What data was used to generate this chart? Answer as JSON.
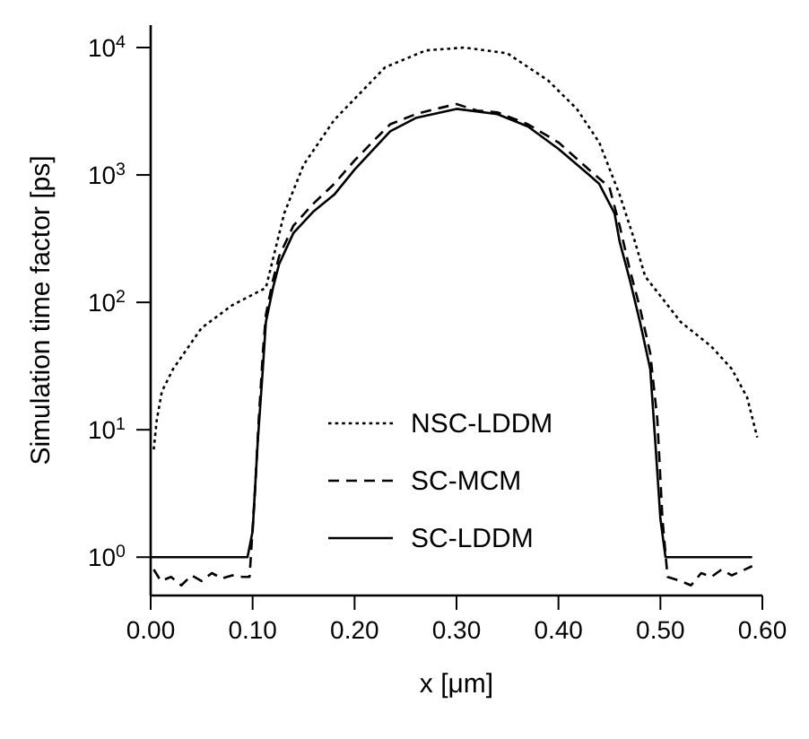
{
  "chart_data": {
    "type": "line",
    "xlabel": "x  [μm]",
    "ylabel": "Simulation time factor  [ps]",
    "log": "y",
    "legend": "bottom",
    "marker": "none",
    "xlim": [
      0,
      0.6
    ],
    "xticks": [
      {
        "value": 0,
        "label": "0.00"
      },
      {
        "value": 0.1,
        "label": "0.10"
      },
      {
        "value": 0.2,
        "label": "0.20"
      },
      {
        "value": 0.3,
        "label": "0.30"
      },
      {
        "value": 0.4,
        "label": "0.40"
      },
      {
        "value": 0.5,
        "label": "0.50"
      },
      {
        "value": 0.6,
        "label": "0.60"
      }
    ],
    "ylim": [
      0.5,
      15000
    ],
    "yticks": [
      {
        "value": 1,
        "label": "10$^{0}$"
      },
      {
        "value": 10,
        "label": "10$^{1}$"
      },
      {
        "value": 100,
        "label": "10$^{2}$"
      },
      {
        "value": 1000,
        "label": "10$^{3}$"
      },
      {
        "value": 10000,
        "label": "10$^{4}$"
      }
    ],
    "series": [
      {
        "name": "NSC-LDDM",
        "color": "#000000",
        "line_style": "dotted",
        "x": [
          0.003,
          0.006,
          0.011,
          0.022,
          0.05,
          0.08,
          0.113,
          0.131,
          0.15,
          0.18,
          0.23,
          0.27,
          0.308,
          0.35,
          0.39,
          0.418,
          0.44,
          0.46,
          0.475,
          0.485,
          0.52,
          0.55,
          0.57,
          0.585,
          0.595
        ],
        "values": [
          7,
          12,
          20,
          30,
          63,
          95,
          130,
          500,
          1200,
          2700,
          7000,
          9500,
          10000,
          9000,
          5500,
          3300,
          1800,
          700,
          300,
          160,
          70,
          45,
          30,
          18,
          8.7
        ]
      },
      {
        "name": "SC-MCM",
        "color": "#000000",
        "line_style": "dashed",
        "x": [
          0.003,
          0.01,
          0.02,
          0.03,
          0.04,
          0.05,
          0.06,
          0.07,
          0.08,
          0.09,
          0.097,
          0.102,
          0.106,
          0.11,
          0.113,
          0.12,
          0.126,
          0.14,
          0.16,
          0.18,
          0.2,
          0.22,
          0.235,
          0.26,
          0.28,
          0.3,
          0.32,
          0.34,
          0.37,
          0.4,
          0.43,
          0.45,
          0.46,
          0.47,
          0.48,
          0.49,
          0.497,
          0.502,
          0.507,
          0.52,
          0.53,
          0.54,
          0.55,
          0.56,
          0.57,
          0.58,
          0.59
        ],
        "values": [
          0.8,
          0.65,
          0.7,
          0.6,
          0.72,
          0.65,
          0.75,
          0.68,
          0.72,
          0.7,
          0.7,
          3,
          12,
          40,
          80,
          150,
          230,
          400,
          600,
          850,
          1300,
          1900,
          2500,
          3000,
          3300,
          3600,
          3200,
          3100,
          2500,
          1800,
          1100,
          800,
          400,
          180,
          90,
          40,
          12,
          2,
          0.7,
          0.65,
          0.6,
          0.75,
          0.7,
          0.8,
          0.72,
          0.78,
          0.85
        ]
      },
      {
        "name": "SC-LDDM",
        "color": "#000000",
        "line_style": "solid",
        "x": [
          0,
          0.095,
          0.1,
          0.105,
          0.11,
          0.113,
          0.12,
          0.126,
          0.14,
          0.16,
          0.18,
          0.2,
          0.235,
          0.26,
          0.3,
          0.34,
          0.37,
          0.4,
          0.43,
          0.44,
          0.455,
          0.46,
          0.47,
          0.48,
          0.49,
          0.495,
          0.5,
          0.505,
          0.59
        ],
        "values": [
          1,
          1,
          1.6,
          8,
          30,
          70,
          130,
          200,
          350,
          520,
          700,
          1100,
          2200,
          2800,
          3300,
          3000,
          2400,
          1600,
          1000,
          850,
          500,
          300,
          150,
          70,
          30,
          8,
          2,
          1,
          1
        ]
      }
    ]
  }
}
